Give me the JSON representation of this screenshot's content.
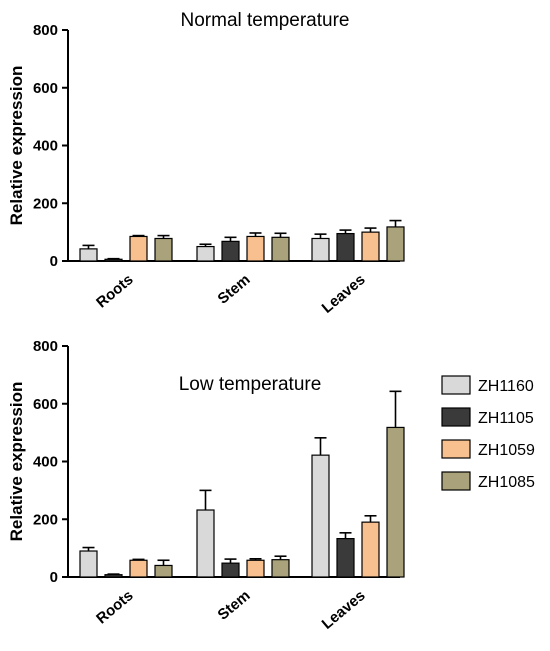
{
  "colors": {
    "ZH1160": "#d9d9d9",
    "ZH1105": "#3a3a3a",
    "ZH1059": "#f8c08e",
    "ZH1085": "#a9a27a"
  },
  "chart_data": [
    {
      "type": "bar",
      "title": "Normal temperature",
      "ylabel": "Relative expression",
      "xlabel": "",
      "ylim": [
        0,
        800
      ],
      "yticks": [
        0,
        200,
        400,
        600,
        800
      ],
      "categories": [
        "Roots",
        "Stem",
        "Leaves"
      ],
      "legend": "none",
      "series": [
        {
          "name": "ZH1160",
          "values": [
            42,
            50,
            78
          ],
          "errors": [
            12,
            8,
            15
          ]
        },
        {
          "name": "ZH1105",
          "values": [
            6,
            68,
            95
          ],
          "errors": [
            2,
            14,
            12
          ]
        },
        {
          "name": "ZH1059",
          "values": [
            85,
            85,
            100
          ],
          "errors": [
            3,
            12,
            14
          ]
        },
        {
          "name": "ZH1085",
          "values": [
            78,
            82,
            118
          ],
          "errors": [
            10,
            14,
            22
          ]
        }
      ]
    },
    {
      "type": "bar",
      "title": "Low temperature",
      "ylabel": "Relative expression",
      "xlabel": "",
      "ylim": [
        0,
        800
      ],
      "yticks": [
        0,
        200,
        400,
        600,
        800
      ],
      "categories": [
        "Roots",
        "Stem",
        "Leaves"
      ],
      "legend": "right",
      "series": [
        {
          "name": "ZH1160",
          "values": [
            90,
            232,
            422
          ],
          "errors": [
            12,
            68,
            60
          ]
        },
        {
          "name": "ZH1105",
          "values": [
            8,
            48,
            133
          ],
          "errors": [
            2,
            14,
            20
          ]
        },
        {
          "name": "ZH1059",
          "values": [
            58,
            58,
            190
          ],
          "errors": [
            3,
            5,
            22
          ]
        },
        {
          "name": "ZH1085",
          "values": [
            40,
            60,
            518
          ],
          "errors": [
            18,
            12,
            125
          ]
        }
      ]
    }
  ]
}
